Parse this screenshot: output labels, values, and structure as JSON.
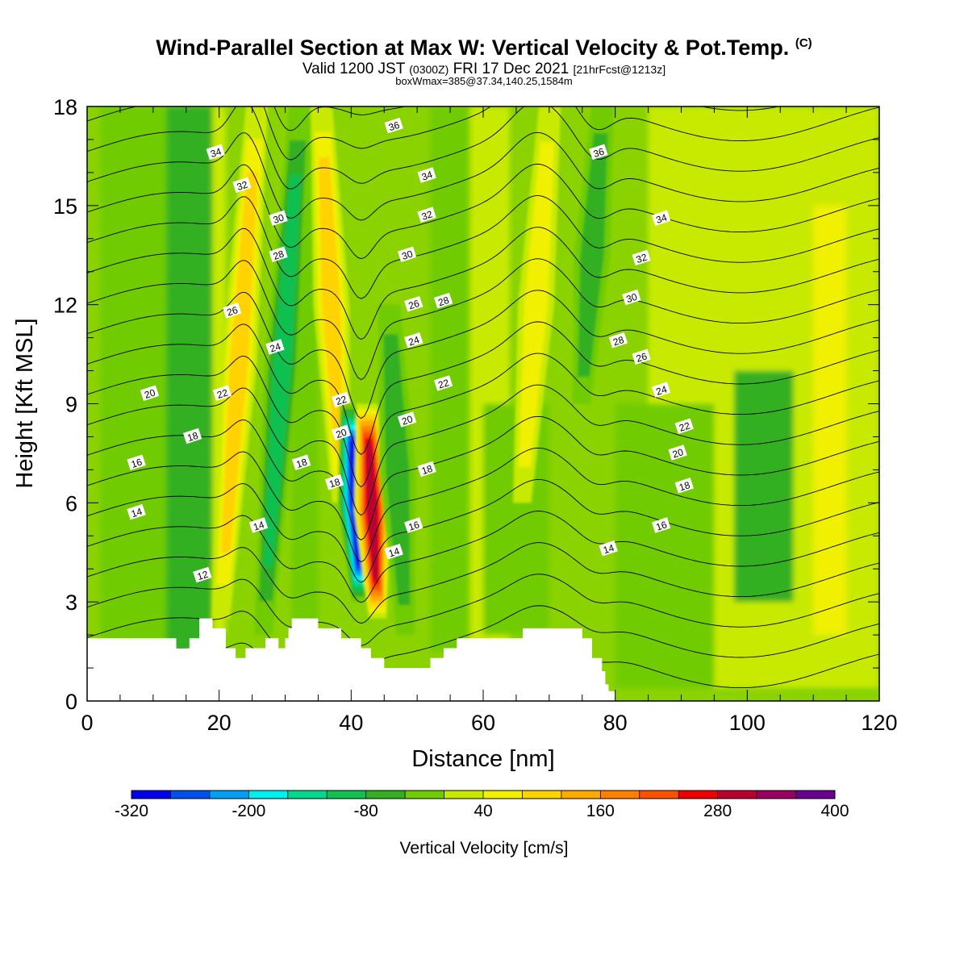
{
  "titles": {
    "main": "Wind-Parallel Section at Max W: Vertical Velocity & Pot.Temp.",
    "copyright": "(C)",
    "valid_prefix": "Valid 1200 JST",
    "valid_utc": "(0300Z)",
    "valid_date": "FRI 17 Dec 2021",
    "forecast": "[21hrFcst@1213z]",
    "boxmax": "boxWmax=385@37.34,140.25,1584m"
  },
  "chart_data": {
    "type": "heatmap",
    "xlabel": "Distance [nm]",
    "ylabel": "Height [Kft MSL]",
    "xlim": [
      0,
      120
    ],
    "ylim": [
      0,
      18
    ],
    "x_ticks": [
      0,
      20,
      40,
      60,
      80,
      100,
      120
    ],
    "y_ticks": [
      0,
      3,
      6,
      9,
      12,
      15,
      18
    ],
    "fill_variable": "Vertical Velocity [cm/s]",
    "colorbar": {
      "label": "Vertical Velocity [cm/s]",
      "tick_labels": [
        "-320",
        "-200",
        "-80",
        "40",
        "160",
        "280",
        "400"
      ],
      "tick_values": [
        -320,
        -200,
        -80,
        40,
        160,
        280,
        400
      ],
      "levels": [
        -320,
        -280,
        -240,
        -200,
        -160,
        -120,
        -80,
        -40,
        0,
        40,
        80,
        120,
        160,
        200,
        240,
        280,
        320,
        360,
        400
      ],
      "colors": [
        "#0000ee",
        "#0050f0",
        "#00a0f5",
        "#00eeee",
        "#00d890",
        "#10c050",
        "#30b020",
        "#70cc00",
        "#c8ea00",
        "#f0f000",
        "#ffd200",
        "#ffaa00",
        "#ff8000",
        "#ff5000",
        "#ee0000",
        "#bb0030",
        "#990060",
        "#6a0090"
      ]
    },
    "features": [
      {
        "x": 23,
        "z_range": [
          2.5,
          18
        ],
        "w": 120
      },
      {
        "x": 29.5,
        "z_range": [
          2,
          18
        ],
        "w": -150
      },
      {
        "x": 37,
        "z_range": [
          6,
          18
        ],
        "w": 120
      },
      {
        "x": 40.7,
        "z_range": [
          3,
          9
        ],
        "w": -320
      },
      {
        "x": 43.2,
        "z_range": [
          2.5,
          9
        ],
        "w": 340
      },
      {
        "x": 47,
        "z_range": [
          2,
          12
        ],
        "w": -100
      },
      {
        "x": 68,
        "z_range": [
          6,
          18
        ],
        "w": 100
      },
      {
        "x": 76.5,
        "z_range": [
          9,
          18
        ],
        "w": -110
      }
    ],
    "terrain_kft": [
      [
        0,
        1.9
      ],
      [
        13.5,
        1.9
      ],
      [
        13.5,
        1.6
      ],
      [
        15.5,
        1.6
      ],
      [
        15.5,
        1.9
      ],
      [
        17,
        1.9
      ],
      [
        17,
        2.5
      ],
      [
        19,
        2.5
      ],
      [
        19,
        2.2
      ],
      [
        21,
        2.2
      ],
      [
        21,
        1.6
      ],
      [
        22.5,
        1.6
      ],
      [
        22.5,
        1.3
      ],
      [
        24,
        1.3
      ],
      [
        24,
        1.6
      ],
      [
        27,
        1.6
      ],
      [
        27,
        1.9
      ],
      [
        29,
        1.9
      ],
      [
        29,
        1.6
      ],
      [
        30,
        1.6
      ],
      [
        30,
        1.9
      ],
      [
        30.5,
        1.9
      ],
      [
        30.5,
        2.2
      ],
      [
        31,
        2.2
      ],
      [
        31,
        2.5
      ],
      [
        35,
        2.5
      ],
      [
        35,
        2.2
      ],
      [
        38.5,
        2.2
      ],
      [
        38.5,
        1.9
      ],
      [
        41.5,
        1.9
      ],
      [
        41.5,
        1.6
      ],
      [
        43,
        1.6
      ],
      [
        43,
        1.3
      ],
      [
        45,
        1.3
      ],
      [
        45,
        1.0
      ],
      [
        52,
        1.0
      ],
      [
        52,
        1.3
      ],
      [
        54,
        1.3
      ],
      [
        54,
        1.6
      ],
      [
        56,
        1.6
      ],
      [
        56,
        1.9
      ],
      [
        66,
        1.9
      ],
      [
        66,
        2.2
      ],
      [
        75,
        2.2
      ],
      [
        75,
        1.9
      ],
      [
        76.5,
        1.9
      ],
      [
        76.5,
        1.3
      ],
      [
        78,
        1.3
      ],
      [
        78,
        0.9
      ],
      [
        78.5,
        0.9
      ],
      [
        78.5,
        0.5
      ],
      [
        79,
        0.5
      ],
      [
        79,
        0.3
      ],
      [
        80,
        0.3
      ],
      [
        80,
        0
      ],
      [
        0,
        0
      ]
    ],
    "isentrope_labels": [
      {
        "label": "12",
        "x": 17.5,
        "z": 3.8
      },
      {
        "label": "14",
        "x": 7.5,
        "z": 5.7
      },
      {
        "label": "14",
        "x": 26,
        "z": 5.3
      },
      {
        "label": "14",
        "x": 46.5,
        "z": 4.5
      },
      {
        "label": "14",
        "x": 79,
        "z": 4.6
      },
      {
        "label": "16",
        "x": 7.5,
        "z": 7.2
      },
      {
        "label": "16",
        "x": 49.5,
        "z": 5.3
      },
      {
        "label": "16",
        "x": 87,
        "z": 5.3
      },
      {
        "label": "18",
        "x": 16,
        "z": 8.0
      },
      {
        "label": "18",
        "x": 32.5,
        "z": 7.2
      },
      {
        "label": "18",
        "x": 37.5,
        "z": 6.6
      },
      {
        "label": "18",
        "x": 51.5,
        "z": 7.0
      },
      {
        "label": "18",
        "x": 90.5,
        "z": 6.5
      },
      {
        "label": "20",
        "x": 9.5,
        "z": 9.3
      },
      {
        "label": "20",
        "x": 38.5,
        "z": 8.1
      },
      {
        "label": "20",
        "x": 48.5,
        "z": 8.5
      },
      {
        "label": "20",
        "x": 89.5,
        "z": 7.5
      },
      {
        "label": "22",
        "x": 20.5,
        "z": 9.3
      },
      {
        "label": "22",
        "x": 38.5,
        "z": 9.1
      },
      {
        "label": "22",
        "x": 54,
        "z": 9.6
      },
      {
        "label": "22",
        "x": 90.5,
        "z": 8.3
      },
      {
        "label": "24",
        "x": 28.5,
        "z": 10.7
      },
      {
        "label": "24",
        "x": 49.5,
        "z": 10.9
      },
      {
        "label": "24",
        "x": 87,
        "z": 9.4
      },
      {
        "label": "26",
        "x": 22,
        "z": 11.8
      },
      {
        "label": "26",
        "x": 49.5,
        "z": 12.0
      },
      {
        "label": "26",
        "x": 84,
        "z": 10.4
      },
      {
        "label": "28",
        "x": 29,
        "z": 13.5
      },
      {
        "label": "28",
        "x": 54,
        "z": 12.1
      },
      {
        "label": "28",
        "x": 80.5,
        "z": 10.9
      },
      {
        "label": "30",
        "x": 29,
        "z": 14.6
      },
      {
        "label": "30",
        "x": 48.5,
        "z": 13.5
      },
      {
        "label": "30",
        "x": 82.5,
        "z": 12.2
      },
      {
        "label": "32",
        "x": 23.5,
        "z": 15.6
      },
      {
        "label": "32",
        "x": 51.5,
        "z": 14.7
      },
      {
        "label": "32",
        "x": 84,
        "z": 13.4
      },
      {
        "label": "34",
        "x": 19.5,
        "z": 16.6
      },
      {
        "label": "34",
        "x": 51.5,
        "z": 15.9
      },
      {
        "label": "34",
        "x": 87,
        "z": 14.6
      },
      {
        "label": "36",
        "x": 46.5,
        "z": 17.4
      },
      {
        "label": "36",
        "x": 77.5,
        "z": 16.6
      }
    ]
  }
}
